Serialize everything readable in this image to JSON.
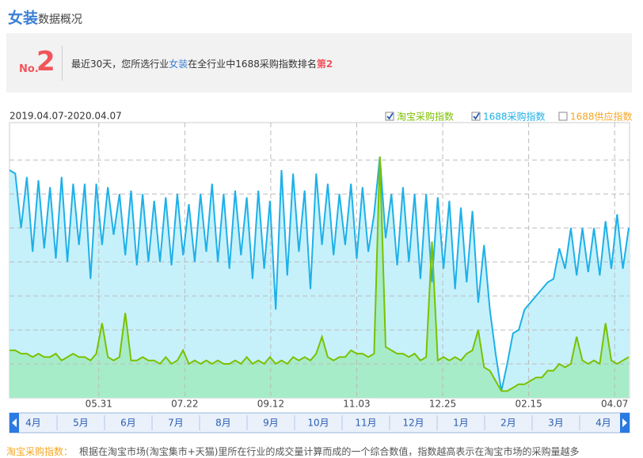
{
  "header": {
    "title": "女装",
    "subtitle": "数据概况"
  },
  "rank_box": {
    "no": "No.",
    "rank": 2,
    "text": [
      "最近30天，您所选行业",
      "女装",
      "在全行业中1688采购指数排名",
      "第2"
    ]
  },
  "footer": {
    "term": "淘宝采购指数：",
    "text": "根据在淘宝市场(淘宝集市+天猫)里所在行业的成交量计算而成的一个综合数值，指数越高表示在淘宝市场的采购量越多"
  },
  "navigator": {
    "labels": [
      "4月",
      "5月",
      "6月",
      "7月",
      "8月",
      "9月",
      "10月",
      "11月",
      "12月",
      "1月",
      "2月",
      "3月",
      "4月"
    ]
  },
  "chart_data": {
    "type": "area",
    "date_range": "2019.04.07-2020.04.07",
    "xlim": [
      0,
      375
    ],
    "ylim": [
      0,
      8.1
    ],
    "ygrid": [
      1,
      2,
      3,
      4,
      5,
      6,
      7
    ],
    "xticks": [
      {
        "value": 54,
        "label": "05.31"
      },
      {
        "value": 106,
        "label": "07.22"
      },
      {
        "value": 158,
        "label": "09.12"
      },
      {
        "value": 210,
        "label": "11.03"
      },
      {
        "value": 262,
        "label": "12.25"
      },
      {
        "value": 314,
        "label": "02.15"
      },
      {
        "value": 366,
        "label": "04.07"
      }
    ],
    "x": [
      0,
      3.5,
      7,
      10.5,
      14,
      17.5,
      21,
      24.5,
      28,
      31.5,
      35,
      38.5,
      42,
      45.5,
      49,
      52.5,
      56,
      59.5,
      63,
      66.5,
      70,
      73.5,
      77,
      80.5,
      84,
      87.5,
      91,
      94.5,
      98,
      101.5,
      105,
      108.5,
      112,
      115.5,
      119,
      122.5,
      126,
      129.5,
      133,
      136.5,
      140,
      143.5,
      147,
      150.5,
      154,
      157.5,
      161,
      164.5,
      168,
      171.5,
      175,
      178.5,
      182,
      185.5,
      189,
      192.5,
      196,
      199.5,
      203,
      206.5,
      210,
      213.5,
      217,
      220.5,
      224,
      227.5,
      231,
      234.5,
      238,
      241.5,
      245,
      248.5,
      252,
      255.5,
      259,
      262.5,
      266,
      269.5,
      273,
      276.5,
      280,
      283.5,
      287,
      290.5,
      294,
      297.5,
      301,
      304.5,
      308,
      311.5,
      315,
      318.5,
      322,
      325.5,
      329,
      332.5,
      336,
      339.5,
      343,
      346.5,
      350,
      353.5,
      357,
      360.5,
      364,
      367.5,
      371,
      374.5
    ],
    "series": [
      {
        "name": "淘宝采购指数",
        "color": "#7cc000",
        "fill": "#a6ecc9",
        "checked": true,
        "values": [
          1.4,
          1.4,
          1.3,
          1.3,
          1.2,
          1.3,
          1.2,
          1.2,
          1.3,
          1.1,
          1.2,
          1.3,
          1.2,
          1.2,
          1.1,
          1.3,
          2.2,
          1.2,
          1.1,
          1.2,
          2.5,
          1.1,
          1.1,
          1.2,
          1.1,
          1.1,
          1.0,
          1.2,
          1.0,
          1.1,
          1.4,
          1.0,
          1.1,
          1.0,
          1.1,
          1.0,
          1.1,
          1.0,
          1.0,
          1.1,
          1.0,
          1.2,
          1.0,
          1.1,
          1.0,
          1.2,
          1.0,
          1.1,
          1.0,
          1.2,
          1.1,
          1.2,
          1.1,
          1.3,
          1.8,
          1.2,
          1.1,
          1.2,
          1.2,
          1.4,
          1.3,
          1.3,
          1.2,
          1.3,
          7.1,
          1.5,
          1.4,
          1.3,
          1.3,
          1.2,
          1.3,
          1.1,
          1.2,
          4.6,
          1.1,
          1.2,
          1.1,
          1.2,
          1.1,
          1.3,
          1.4,
          2.0,
          0.9,
          0.8,
          0.5,
          0.2,
          0.2,
          0.3,
          0.4,
          0.4,
          0.5,
          0.6,
          0.6,
          0.8,
          0.8,
          1.0,
          0.9,
          1.0,
          1.8,
          1.1,
          1.0,
          1.1,
          1.0,
          2.2,
          1.1,
          1.0,
          1.1,
          1.2
        ]
      },
      {
        "name": "1688采购指数",
        "color": "#1fb0e8",
        "fill": "#c6f1fb",
        "checked": true,
        "values": [
          6.7,
          6.6,
          5.0,
          6.5,
          4.3,
          6.4,
          4.4,
          6.2,
          4.1,
          6.5,
          4.0,
          6.3,
          4.5,
          6.3,
          3.5,
          6.3,
          4.5,
          6.2,
          4.8,
          6.0,
          4.2,
          6.1,
          3.9,
          6.0,
          4.0,
          5.8,
          4.0,
          5.9,
          3.9,
          6.0,
          4.2,
          5.7,
          4.0,
          6.0,
          4.3,
          6.3,
          4.0,
          6.0,
          3.8,
          6.1,
          4.2,
          5.9,
          3.5,
          6.1,
          3.8,
          5.8,
          2.6,
          6.7,
          3.6,
          6.6,
          4.3,
          6.1,
          3.2,
          6.6,
          4.5,
          6.3,
          4.2,
          6.0,
          4.5,
          6.3,
          4.1,
          6.2,
          4.3,
          5.4,
          7.1,
          4.7,
          6.0,
          3.9,
          6.2,
          4.0,
          6.0,
          3.5,
          6.0,
          3.4,
          5.9,
          3.8,
          5.8,
          3.2,
          5.6,
          3.4,
          5.5,
          2.8,
          4.5,
          2.6,
          1.3,
          0.2,
          1.0,
          1.9,
          2.0,
          2.6,
          2.8,
          3.0,
          3.2,
          3.4,
          3.5,
          4.4,
          3.8,
          5.0,
          3.6,
          5.0,
          3.7,
          5.0,
          3.6,
          5.2,
          3.8,
          5.4,
          3.8,
          5.0
        ]
      },
      {
        "name": "1688供应指数",
        "color": "#f5a623",
        "checked": false
      }
    ]
  }
}
